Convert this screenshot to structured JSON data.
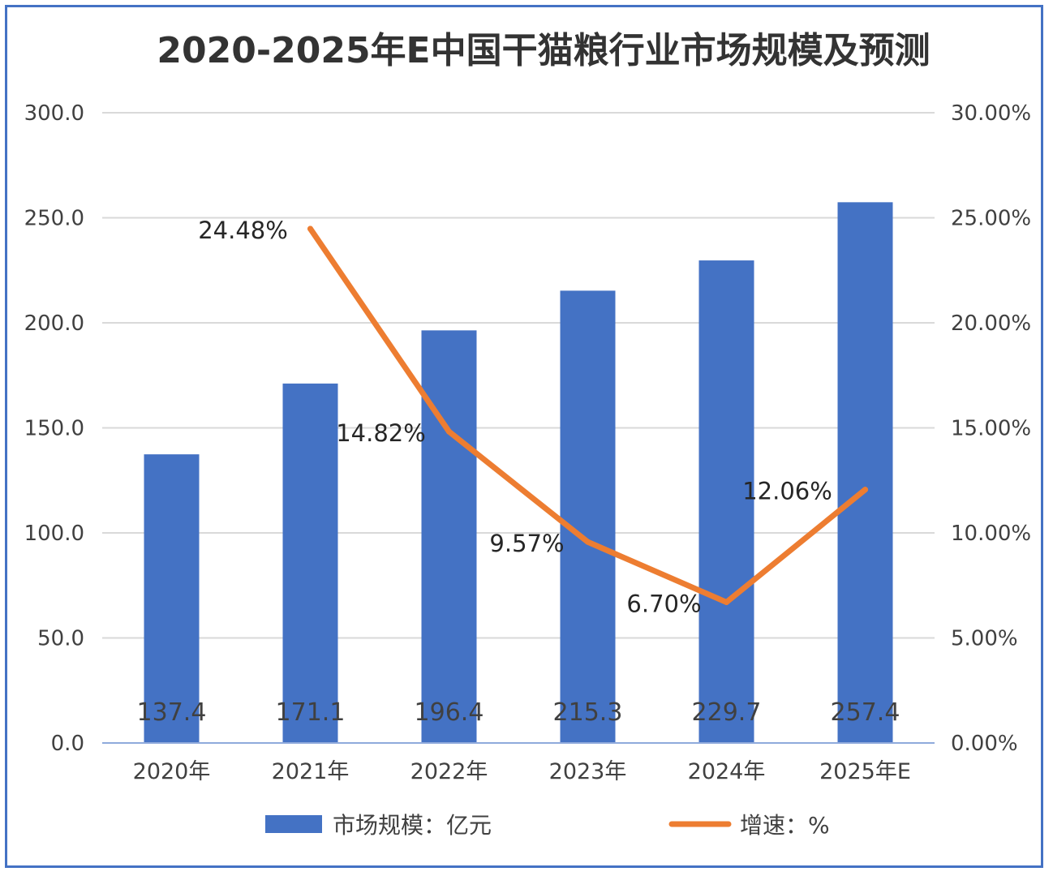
{
  "chart_data": {
    "type": "bar+line",
    "title": "2020-2025年E中国干猫粮行业市场规模及预测",
    "categories": [
      "2020年",
      "2021年",
      "2022年",
      "2023年",
      "2024年",
      "2025年E"
    ],
    "series": [
      {
        "name": "市场规模：亿元",
        "type": "bar",
        "axis": "left",
        "values": [
          137.4,
          171.1,
          196.4,
          215.3,
          229.7,
          257.4
        ],
        "labels": [
          "137.4",
          "171.1",
          "196.4",
          "215.3",
          "229.7",
          "257.4"
        ],
        "color": "#4472c4"
      },
      {
        "name": "增速：%",
        "type": "line",
        "axis": "right",
        "values": [
          null,
          24.48,
          14.82,
          9.57,
          6.7,
          12.06
        ],
        "labels": [
          "",
          "24.48%",
          "14.82%",
          "9.57%",
          "6.70%",
          "12.06%"
        ],
        "color": "#ed7d31"
      }
    ],
    "y_left": {
      "range": [
        0,
        300
      ],
      "ticks": [
        0,
        50,
        100,
        150,
        200,
        250,
        300
      ],
      "tick_labels": [
        "0.0",
        "50.0",
        "100.0",
        "150.0",
        "200.0",
        "250.0",
        "300.0"
      ]
    },
    "y_right": {
      "range": [
        0,
        30
      ],
      "ticks": [
        0,
        5,
        10,
        15,
        20,
        25,
        30
      ],
      "tick_labels": [
        "0.00%",
        "5.00%",
        "10.00%",
        "15.00%",
        "20.00%",
        "25.00%",
        "30.00%"
      ]
    },
    "grid": true,
    "legend": "bottom-center"
  }
}
